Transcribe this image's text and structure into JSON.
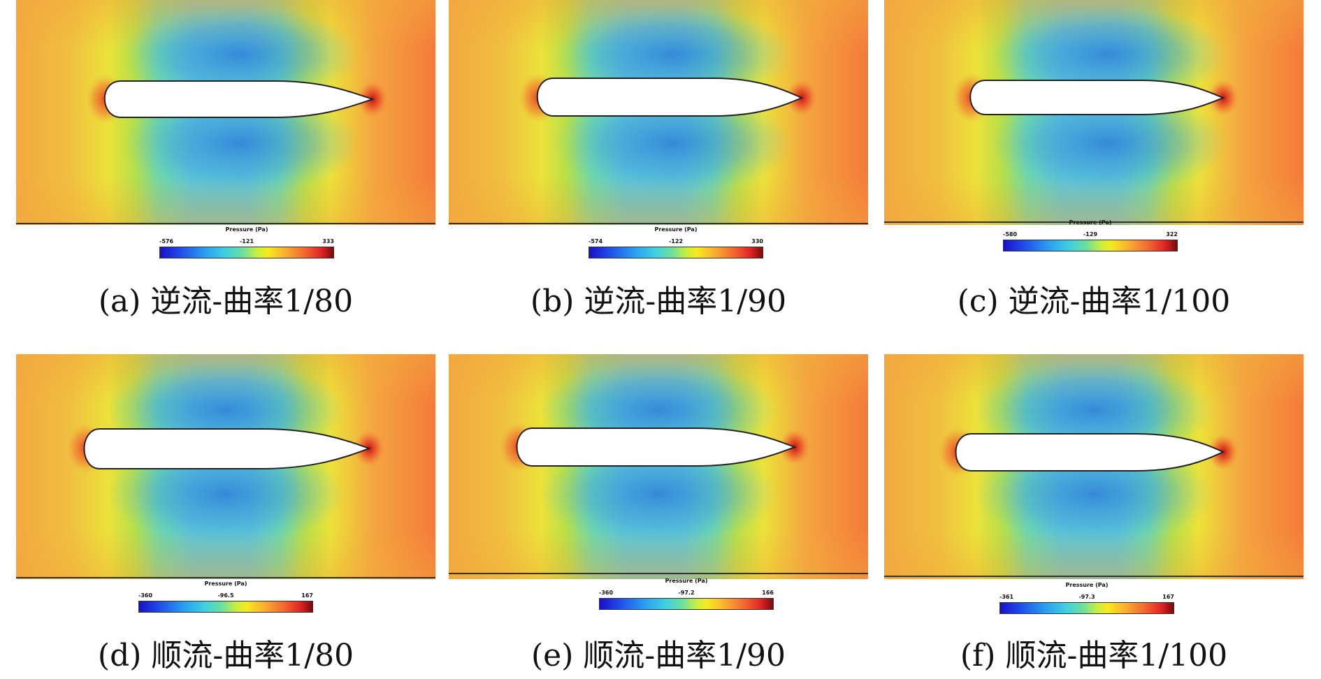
{
  "colorbar_title": "Pressure (Pa)",
  "panels": [
    {
      "caption": "(a) 逆流-曲率1/80",
      "min": "-576",
      "mid": "-121",
      "max": "333"
    },
    {
      "caption": "(b) 逆流-曲率1/90",
      "min": "-574",
      "mid": "-122",
      "max": "330"
    },
    {
      "caption": "(c) 逆流-曲率1/100",
      "min": "-580",
      "mid": "-129",
      "max": "322"
    },
    {
      "caption": "(d) 顺流-曲率1/80",
      "min": "-360",
      "mid": "-96.5",
      "max": "167"
    },
    {
      "caption": "(e) 顺流-曲率1/90",
      "min": "-360",
      "mid": "-97.2",
      "max": "166"
    },
    {
      "caption": "(f) 顺流-曲率1/100",
      "min": "-361",
      "mid": "-97.3",
      "max": "167"
    }
  ],
  "colors": {
    "far_field": "#f2a83c",
    "downstream": "#f47a3a",
    "suction": "#4fb0d8",
    "body": "#ffffff",
    "outline": "#222222"
  }
}
